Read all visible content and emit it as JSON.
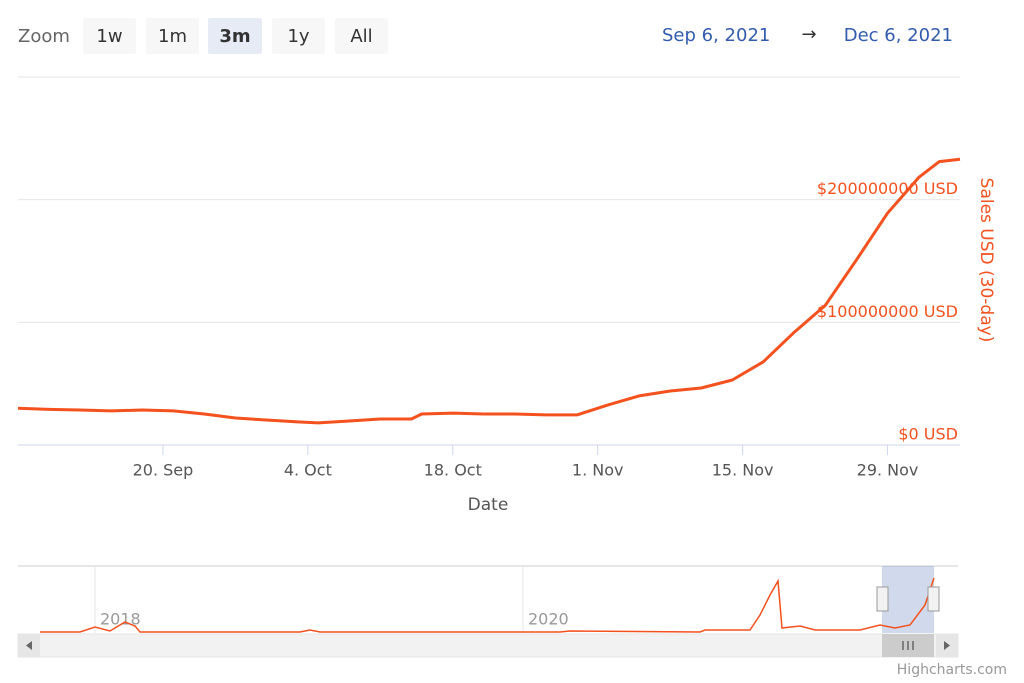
{
  "range_selector": {
    "zoom_label": "Zoom",
    "buttons": [
      "1w",
      "1m",
      "3m",
      "1y",
      "All"
    ],
    "selected": "3m",
    "from": "Sep 6, 2021",
    "separator": "→",
    "to": "Dec 6, 2021"
  },
  "chart_data": {
    "type": "line",
    "x_label": "Date",
    "y_label": "Sales USD (30-day)",
    "color": "#f4511e",
    "grid": true,
    "x": [
      "2021-09-06",
      "2021-09-09",
      "2021-09-12",
      "2021-09-15",
      "2021-09-18",
      "2021-09-21",
      "2021-09-24",
      "2021-09-27",
      "2021-09-30",
      "2021-10-03",
      "2021-10-05",
      "2021-10-08",
      "2021-10-11",
      "2021-10-14",
      "2021-10-15",
      "2021-10-18",
      "2021-10-21",
      "2021-10-24",
      "2021-10-27",
      "2021-10-30",
      "2021-11-02",
      "2021-11-05",
      "2021-11-08",
      "2021-11-11",
      "2021-11-14",
      "2021-11-17",
      "2021-11-20",
      "2021-11-23",
      "2021-11-26",
      "2021-11-29",
      "2021-12-02",
      "2021-12-04",
      "2021-12-06"
    ],
    "values": [
      30000000,
      29000000,
      28500000,
      27800000,
      28500000,
      27800000,
      25300000,
      22000000,
      20400000,
      18800000,
      18000000,
      19600000,
      21200000,
      21200000,
      25300000,
      26000000,
      25300000,
      25300000,
      24500000,
      24500000,
      32700000,
      40000000,
      44000000,
      46500000,
      53000000,
      67800000,
      92000000,
      114000000,
      151000000,
      189000000,
      218000000,
      231000000,
      233000000
    ],
    "xlim": [
      "2021-09-06",
      "2021-12-06"
    ],
    "xticks": [
      {
        "value": "2021-09-20",
        "label": "20. Sep"
      },
      {
        "value": "2021-10-04",
        "label": "4. Oct"
      },
      {
        "value": "2021-10-18",
        "label": "18. Oct"
      },
      {
        "value": "2021-11-01",
        "label": "1. Nov"
      },
      {
        "value": "2021-11-15",
        "label": "15. Nov"
      },
      {
        "value": "2021-11-29",
        "label": "29. Nov"
      }
    ],
    "ylim": [
      0,
      300000000
    ],
    "yticks": [
      {
        "value": 0,
        "label": "$0 USD"
      },
      {
        "value": 100000000,
        "label": "$100000000 USD"
      },
      {
        "value": 200000000,
        "label": "$200000000 USD"
      }
    ]
  },
  "navigator": {
    "labels": [
      "2018",
      "2020"
    ]
  },
  "credits": "Highcharts.com"
}
